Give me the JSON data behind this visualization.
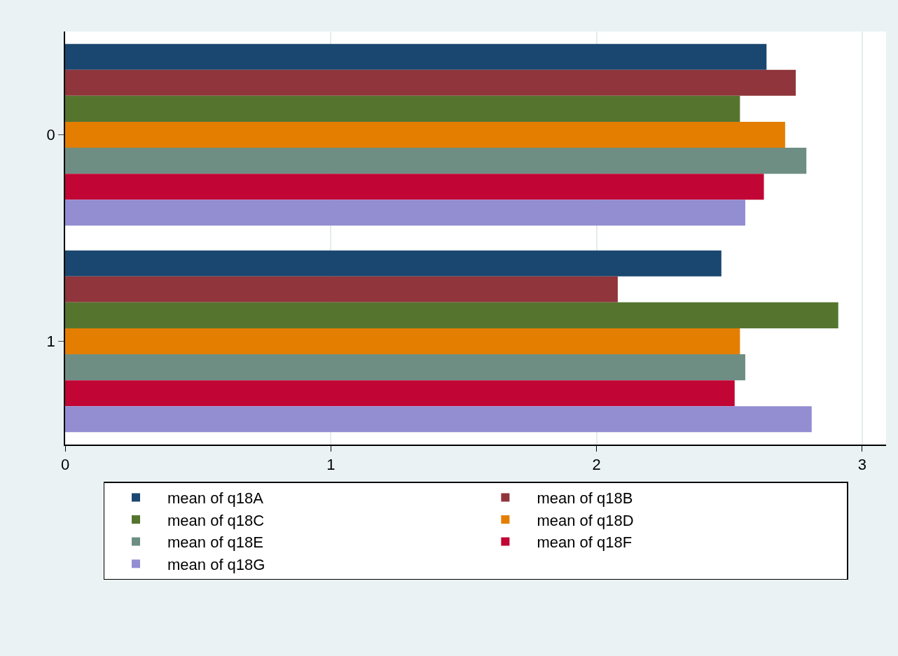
{
  "chart_data": {
    "type": "bar",
    "orientation": "horizontal",
    "categories": [
      "0",
      "1"
    ],
    "series": [
      {
        "name": "mean of q18A",
        "color": "#1a476f",
        "values": [
          2.64,
          2.47
        ]
      },
      {
        "name": "mean of q18B",
        "color": "#90353b",
        "values": [
          2.75,
          2.08
        ]
      },
      {
        "name": "mean of q18C",
        "color": "#55752f",
        "values": [
          2.54,
          2.91
        ]
      },
      {
        "name": "mean of q18D",
        "color": "#e37e00",
        "values": [
          2.71,
          2.54
        ]
      },
      {
        "name": "mean of q18E",
        "color": "#6e8e84",
        "values": [
          2.79,
          2.56
        ]
      },
      {
        "name": "mean of q18F",
        "color": "#c10534",
        "values": [
          2.63,
          2.52
        ]
      },
      {
        "name": "mean of q18G",
        "color": "#938dd2",
        "values": [
          2.56,
          2.81
        ]
      }
    ],
    "xlim": [
      0,
      3.09
    ],
    "xticks": [
      0,
      1,
      2,
      3
    ],
    "grid": "x",
    "legend": "bottom"
  }
}
